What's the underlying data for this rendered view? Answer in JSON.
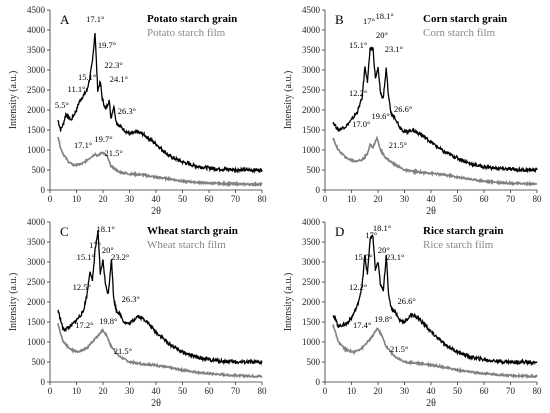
{
  "chart_data": [
    {
      "type": "line",
      "panel_label": "A",
      "xlabel": "2θ",
      "ylabel": "Intensity (a.u.)",
      "xlim": [
        0,
        80
      ],
      "ylim": [
        0,
        4500
      ],
      "xticks": [
        0,
        10,
        20,
        30,
        40,
        50,
        60,
        70,
        80
      ],
      "yticks": [
        0,
        500,
        1000,
        1500,
        2000,
        2500,
        3000,
        3500,
        4000,
        4500
      ],
      "series": [
        {
          "name": "Potato starch grain",
          "color": "#000000",
          "x": [
            3,
            4,
            5,
            6,
            8,
            10,
            11,
            12,
            13,
            14,
            15,
            16,
            17,
            17.5,
            18,
            19,
            19.7,
            21,
            22.3,
            23,
            24.1,
            25,
            26.3,
            28,
            30,
            33,
            35,
            40,
            45,
            50,
            55,
            60,
            65,
            70,
            75,
            80
          ],
          "y": [
            1750,
            1500,
            1650,
            1900,
            1750,
            2000,
            2200,
            2300,
            2400,
            2500,
            2800,
            3200,
            3950,
            3200,
            2500,
            2700,
            2300,
            2000,
            2250,
            1800,
            2100,
            1700,
            1600,
            1500,
            1400,
            1450,
            1400,
            1150,
            850,
            700,
            600,
            550,
            520,
            510,
            500,
            500
          ]
        },
        {
          "name": "Potato starch film",
          "color": "#808080",
          "x": [
            3,
            4,
            5,
            7,
            9,
            12,
            14,
            16,
            17.1,
            18,
            19.7,
            21.5,
            23,
            26,
            30,
            35,
            40,
            45,
            50,
            60,
            70,
            80
          ],
          "y": [
            1350,
            1050,
            900,
            700,
            620,
            650,
            750,
            850,
            900,
            850,
            950,
            850,
            600,
            450,
            400,
            380,
            320,
            280,
            220,
            170,
            150,
            140
          ]
        }
      ],
      "annotations": [
        "5.5°",
        "11.1°",
        "15.1°",
        "17.1°",
        "19.7°",
        "22.3°",
        "24.1°",
        "26.3°",
        "17.1°",
        "19.7°",
        "21.5°"
      ]
    },
    {
      "type": "line",
      "panel_label": "B",
      "xlabel": "2θ",
      "ylabel": "Intensity (a.u.)",
      "xlim": [
        0,
        80
      ],
      "ylim": [
        0,
        4500
      ],
      "xticks": [
        0,
        10,
        20,
        30,
        40,
        50,
        60,
        70,
        80
      ],
      "yticks": [
        0,
        500,
        1000,
        1500,
        2000,
        2500,
        3000,
        3500,
        4000,
        4500
      ],
      "series": [
        {
          "name": "Corn starch grain",
          "color": "#000000",
          "x": [
            3,
            5,
            8,
            10,
            12.2,
            14,
            15.1,
            16,
            17,
            18.1,
            19,
            20,
            21,
            22,
            23.1,
            24,
            25,
            26.6,
            28,
            30,
            33,
            36,
            40,
            45,
            50,
            55,
            60,
            65,
            70,
            75,
            80
          ],
          "y": [
            1700,
            1500,
            1600,
            1750,
            1950,
            2300,
            3100,
            2700,
            3500,
            3550,
            2800,
            3050,
            2400,
            2300,
            3050,
            2300,
            1900,
            1800,
            1600,
            1450,
            1500,
            1400,
            1200,
            950,
            800,
            650,
            580,
            540,
            520,
            500,
            500
          ]
        },
        {
          "name": "Corn starch film",
          "color": "#808080",
          "x": [
            3,
            5,
            8,
            11,
            14,
            16,
            17,
            18,
            19.6,
            21,
            23,
            26,
            30,
            35,
            40,
            45,
            50,
            55,
            60,
            70,
            80
          ],
          "y": [
            1300,
            1000,
            800,
            720,
            750,
            900,
            1150,
            1050,
            1300,
            1000,
            800,
            650,
            500,
            450,
            420,
            380,
            320,
            270,
            220,
            170,
            150
          ]
        }
      ],
      "annotations": [
        "12.2°",
        "15.1°",
        "17°",
        "18.1°",
        "20°",
        "23.1°",
        "26.6°",
        "17.0°",
        "19.6°",
        "21.5°"
      ]
    },
    {
      "type": "line",
      "panel_label": "C",
      "xlabel": "2θ",
      "ylabel": "Intensity (a.u.)",
      "xlim": [
        0,
        80
      ],
      "ylim": [
        0,
        4000
      ],
      "xticks": [
        0,
        10,
        20,
        30,
        40,
        50,
        60,
        70,
        80
      ],
      "yticks": [
        0,
        500,
        1000,
        1500,
        2000,
        2500,
        3000,
        3500,
        4000
      ],
      "series": [
        {
          "name": "Wheat starch grain",
          "color": "#000000",
          "x": [
            3,
            5,
            8,
            10,
            12.5,
            14,
            15.1,
            16,
            17,
            18.1,
            19,
            20,
            21,
            22,
            23.2,
            24,
            25,
            26.3,
            28,
            30,
            33,
            36,
            40,
            45,
            50,
            55,
            60,
            65,
            70,
            75,
            80
          ],
          "y": [
            1800,
            1300,
            1400,
            1550,
            1750,
            2200,
            2800,
            2500,
            3300,
            3750,
            2700,
            3050,
            2400,
            2200,
            3100,
            2100,
            1800,
            1700,
            1500,
            1450,
            1650,
            1550,
            1250,
            950,
            750,
            620,
            560,
            520,
            500,
            500,
            480
          ]
        },
        {
          "name": "Wheat starch film",
          "color": "#808080",
          "x": [
            3,
            5,
            8,
            11,
            14,
            17.2,
            18,
            19.8,
            21.5,
            23,
            26,
            30,
            35,
            40,
            45,
            50,
            55,
            60,
            70,
            80
          ],
          "y": [
            1450,
            1000,
            800,
            750,
            850,
            1100,
            1150,
            1300,
            1150,
            900,
            650,
            500,
            450,
            420,
            360,
            300,
            250,
            210,
            160,
            140
          ]
        }
      ],
      "annotations": [
        "12.5°",
        "15.1°",
        "17°",
        "18.1°",
        "20°",
        "23.2°",
        "26.3°",
        "17.2°",
        "19.8°",
        "21.5°"
      ]
    },
    {
      "type": "line",
      "panel_label": "D",
      "xlabel": "2θ",
      "ylabel": "Intensity (a.u.)",
      "xlim": [
        0,
        80
      ],
      "ylim": [
        0,
        4000
      ],
      "xticks": [
        0,
        10,
        20,
        30,
        40,
        50,
        60,
        70,
        80
      ],
      "yticks": [
        0,
        500,
        1000,
        1500,
        2000,
        2500,
        3000,
        3500,
        4000
      ],
      "series": [
        {
          "name": "Rice starch grain",
          "color": "#000000",
          "x": [
            3,
            5,
            8,
            10,
            12.2,
            14,
            15.0,
            16,
            17,
            18.1,
            19,
            20,
            21,
            22,
            23.1,
            24,
            25,
            26.6,
            28,
            30,
            33,
            36,
            40,
            45,
            50,
            55,
            60,
            65,
            70,
            75,
            80
          ],
          "y": [
            1700,
            1400,
            1450,
            1600,
            1900,
            2400,
            3150,
            2700,
            3550,
            3650,
            2800,
            3000,
            2400,
            2300,
            3150,
            2200,
            1850,
            1750,
            1550,
            1500,
            1700,
            1550,
            1250,
            950,
            750,
            620,
            560,
            520,
            500,
            500,
            480
          ]
        },
        {
          "name": "Rice starch film",
          "color": "#808080",
          "x": [
            3,
            5,
            8,
            11,
            14,
            17.4,
            18,
            19.8,
            21.5,
            23,
            26,
            30,
            35,
            40,
            45,
            50,
            55,
            60,
            70,
            80
          ],
          "y": [
            1450,
            1000,
            800,
            750,
            850,
            1100,
            1150,
            1350,
            1150,
            900,
            650,
            500,
            470,
            430,
            370,
            300,
            250,
            210,
            160,
            140
          ]
        }
      ],
      "annotations": [
        "12.2°",
        "15.0°",
        "17°",
        "18.1°",
        "20°",
        "23.1°",
        "26.6°",
        "17.4°",
        "19.8°",
        "21.5°"
      ]
    }
  ]
}
